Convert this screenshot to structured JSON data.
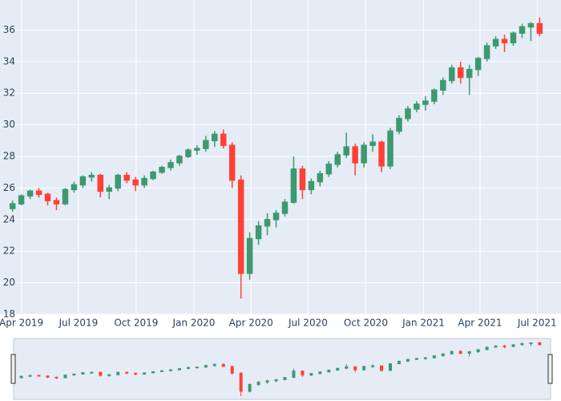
{
  "chart_data": {
    "type": "candlestick",
    "x": [
      "2019-03-18",
      "2019-04-01",
      "2019-04-15",
      "2019-04-29",
      "2019-05-13",
      "2019-05-27",
      "2019-06-10",
      "2019-06-24",
      "2019-07-08",
      "2019-07-22",
      "2019-08-05",
      "2019-08-19",
      "2019-09-02",
      "2019-09-16",
      "2019-09-30",
      "2019-10-14",
      "2019-10-28",
      "2019-11-11",
      "2019-11-25",
      "2019-12-09",
      "2019-12-23",
      "2020-01-06",
      "2020-01-20",
      "2020-02-03",
      "2020-02-17",
      "2020-03-02",
      "2020-03-16",
      "2020-03-30",
      "2020-04-13",
      "2020-04-27",
      "2020-05-11",
      "2020-05-25",
      "2020-06-08",
      "2020-06-22",
      "2020-07-06",
      "2020-07-20",
      "2020-08-03",
      "2020-08-17",
      "2020-08-31",
      "2020-09-14",
      "2020-09-28",
      "2020-10-12",
      "2020-10-26",
      "2020-11-09",
      "2020-11-23",
      "2020-12-07",
      "2020-12-21",
      "2021-01-04",
      "2021-01-18",
      "2021-02-01",
      "2021-02-15",
      "2021-03-01",
      "2021-03-15",
      "2021-03-29",
      "2021-04-12",
      "2021-04-26",
      "2021-05-10",
      "2021-05-24",
      "2021-06-07",
      "2021-06-21",
      "2021-07-05"
    ],
    "open": [
      24.7,
      25.0,
      25.5,
      25.8,
      25.6,
      25.2,
      25.0,
      25.9,
      26.2,
      26.7,
      26.8,
      25.8,
      26.0,
      26.8,
      26.5,
      26.2,
      26.6,
      27.0,
      27.3,
      27.6,
      28.0,
      28.4,
      28.5,
      29.0,
      29.4,
      28.7,
      26.5,
      20.6,
      22.8,
      23.6,
      24.0,
      24.4,
      25.1,
      27.2,
      25.9,
      26.4,
      26.9,
      27.5,
      28.1,
      28.6,
      27.6,
      28.7,
      28.9,
      27.4,
      29.6,
      30.4,
      31.0,
      31.3,
      31.5,
      32.2,
      32.8,
      33.6,
      33.0,
      33.5,
      34.2,
      35.0,
      35.4,
      35.2,
      35.8,
      36.2,
      36.4
    ],
    "high": [
      25.2,
      25.6,
      25.9,
      26.0,
      25.7,
      25.4,
      26.0,
      26.4,
      26.8,
      27.0,
      26.9,
      26.2,
      26.9,
      27.0,
      26.7,
      26.8,
      27.1,
      27.4,
      27.8,
      28.1,
      28.5,
      28.7,
      29.3,
      29.6,
      29.7,
      28.9,
      26.8,
      23.2,
      23.9,
      24.4,
      24.6,
      25.3,
      28.0,
      27.4,
      26.6,
      27.1,
      27.7,
      28.3,
      29.5,
      28.8,
      28.9,
      29.4,
      29.0,
      29.8,
      30.6,
      31.2,
      31.5,
      31.8,
      32.3,
      33.0,
      33.8,
      34.0,
      33.8,
      34.3,
      35.2,
      35.6,
      35.7,
      35.9,
      36.4,
      36.5,
      36.8
    ],
    "low": [
      24.5,
      24.9,
      25.3,
      25.4,
      24.9,
      24.6,
      24.9,
      25.7,
      26.0,
      26.4,
      25.4,
      25.3,
      25.8,
      26.3,
      25.8,
      26.0,
      26.5,
      26.9,
      27.1,
      27.4,
      27.9,
      28.1,
      28.3,
      28.6,
      28.5,
      26.0,
      19.0,
      20.2,
      22.4,
      23.0,
      23.5,
      24.2,
      25.0,
      25.3,
      25.6,
      26.1,
      26.7,
      27.3,
      27.9,
      26.8,
      27.3,
      28.3,
      27.0,
      27.2,
      29.4,
      30.2,
      30.8,
      30.9,
      31.3,
      31.9,
      32.6,
      32.6,
      31.9,
      33.1,
      34.0,
      34.8,
      34.6,
      35.0,
      35.5,
      35.3,
      35.6
    ],
    "close": [
      25.0,
      25.5,
      25.8,
      25.6,
      25.2,
      25.0,
      25.9,
      26.2,
      26.7,
      26.8,
      25.8,
      26.0,
      26.8,
      26.5,
      26.2,
      26.6,
      27.0,
      27.3,
      27.6,
      28.0,
      28.4,
      28.5,
      29.0,
      29.4,
      28.7,
      26.5,
      20.6,
      22.8,
      23.6,
      24.0,
      24.4,
      25.1,
      27.2,
      25.9,
      26.4,
      26.9,
      27.5,
      28.1,
      28.6,
      27.6,
      28.7,
      28.9,
      27.4,
      29.6,
      30.4,
      31.0,
      31.3,
      31.5,
      32.2,
      32.8,
      33.6,
      33.0,
      33.5,
      34.2,
      35.0,
      35.4,
      35.2,
      35.8,
      36.2,
      36.4,
      35.8
    ],
    "increasing_color": "#3d9970",
    "decreasing_color": "#ff4136",
    "xlim": [
      "2019-02-26",
      "2021-08-08"
    ],
    "xticks": [
      {
        "value": "2019-04-01",
        "label": "Apr 2019"
      },
      {
        "value": "2019-07-01",
        "label": "Jul 2019"
      },
      {
        "value": "2019-10-01",
        "label": "Oct 2019"
      },
      {
        "value": "2020-01-01",
        "label": "Jan 2020"
      },
      {
        "value": "2020-04-01",
        "label": "Apr 2020"
      },
      {
        "value": "2020-07-01",
        "label": "Jul 2020"
      },
      {
        "value": "2020-10-01",
        "label": "Oct 2020"
      },
      {
        "value": "2021-01-01",
        "label": "Jan 2021"
      },
      {
        "value": "2021-04-01",
        "label": "Apr 2021"
      },
      {
        "value": "2021-07-01",
        "label": "Jul 2021"
      }
    ],
    "ylim": [
      18,
      37.9
    ],
    "yticks": [
      18,
      20,
      22,
      24,
      26,
      28,
      30,
      32,
      34,
      36
    ],
    "grid": true,
    "rangeslider": true
  }
}
